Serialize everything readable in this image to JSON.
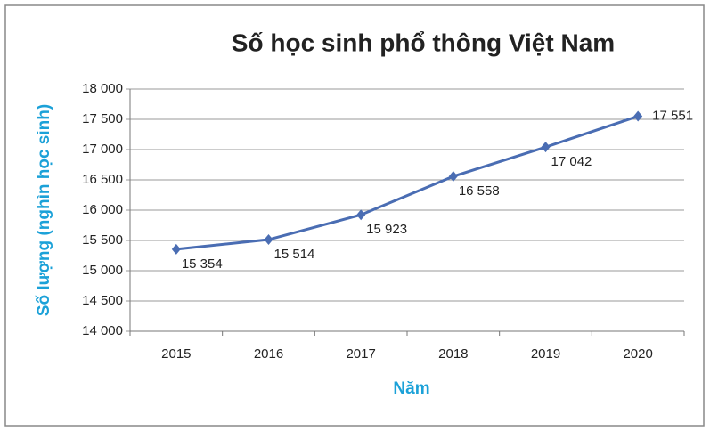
{
  "chart_data": {
    "type": "line",
    "title": "Số học sinh phổ thông Việt Nam",
    "x_label": "Năm",
    "y_label": "Số lượng (nghìn học sinh)",
    "categories": [
      "2015",
      "2016",
      "2017",
      "2018",
      "2019",
      "2020"
    ],
    "series": [
      {
        "name": "Số học sinh",
        "color": "#4a6db3",
        "values": [
          15354,
          15514,
          15923,
          16558,
          17042,
          17551
        ],
        "value_labels": [
          "15 354",
          "15 514",
          "15 923",
          "16 558",
          "17 042",
          "17 551"
        ]
      }
    ],
    "ylim": [
      14000,
      18000
    ],
    "yticks": [
      {
        "value": 14000,
        "label": "14 000"
      },
      {
        "value": 14500,
        "label": "14 500"
      },
      {
        "value": 15000,
        "label": "15 000"
      },
      {
        "value": 15500,
        "label": "15 500"
      },
      {
        "value": 16000,
        "label": "16 000"
      },
      {
        "value": 16500,
        "label": "16 500"
      },
      {
        "value": 17000,
        "label": "17 000"
      },
      {
        "value": 17500,
        "label": "17 500"
      },
      {
        "value": 18000,
        "label": "18 000"
      }
    ],
    "grid": true
  }
}
